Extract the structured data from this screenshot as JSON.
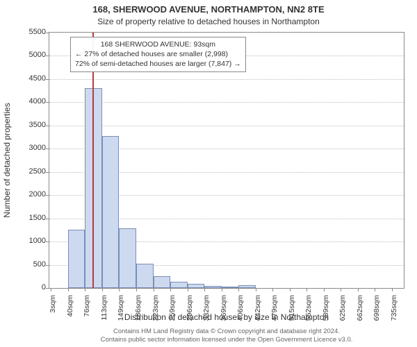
{
  "title_line1": "168, SHERWOOD AVENUE, NORTHAMPTON, NN2 8TE",
  "title_line2": "Size of property relative to detached houses in Northampton",
  "ylabel": "Number of detached properties",
  "xlabel": "Distribution of detached houses by size in Northampton",
  "chart": {
    "type": "histogram",
    "background_color": "#ffffff",
    "border_color": "#8a8a8a",
    "grid_color": "#bcbcbc",
    "bar_fill": "#cdd9ef",
    "bar_border": "#7a8db5",
    "marker_color": "#cc3333",
    "label_fontsize": 12,
    "tick_fontsize": 11,
    "ymin": 0,
    "ymax": 5500,
    "ytick_step": 500,
    "yticks": [
      0,
      500,
      1000,
      1500,
      2000,
      2500,
      3000,
      3500,
      4000,
      4500,
      5000,
      5500
    ],
    "xmin": 0,
    "xmax": 760,
    "xticks": [
      {
        "v": 3,
        "label": "3sqm"
      },
      {
        "v": 40,
        "label": "40sqm"
      },
      {
        "v": 76,
        "label": "76sqm"
      },
      {
        "v": 113,
        "label": "113sqm"
      },
      {
        "v": 149,
        "label": "149sqm"
      },
      {
        "v": 186,
        "label": "186sqm"
      },
      {
        "v": 223,
        "label": "223sqm"
      },
      {
        "v": 259,
        "label": "259sqm"
      },
      {
        "v": 296,
        "label": "296sqm"
      },
      {
        "v": 332,
        "label": "332sqm"
      },
      {
        "v": 369,
        "label": "369sqm"
      },
      {
        "v": 406,
        "label": "406sqm"
      },
      {
        "v": 442,
        "label": "442sqm"
      },
      {
        "v": 479,
        "label": "479sqm"
      },
      {
        "v": 515,
        "label": "515sqm"
      },
      {
        "v": 552,
        "label": "552sqm"
      },
      {
        "v": 589,
        "label": "589sqm"
      },
      {
        "v": 625,
        "label": "625sqm"
      },
      {
        "v": 662,
        "label": "662sqm"
      },
      {
        "v": 698,
        "label": "698sqm"
      },
      {
        "v": 735,
        "label": "735sqm"
      }
    ],
    "bars": [
      {
        "x0": 3,
        "x1": 40,
        "y": 0
      },
      {
        "x0": 40,
        "x1": 76,
        "y": 1260
      },
      {
        "x0": 76,
        "x1": 113,
        "y": 4310
      },
      {
        "x0": 113,
        "x1": 149,
        "y": 3280
      },
      {
        "x0": 149,
        "x1": 186,
        "y": 1280
      },
      {
        "x0": 186,
        "x1": 223,
        "y": 520
      },
      {
        "x0": 223,
        "x1": 259,
        "y": 260
      },
      {
        "x0": 259,
        "x1": 296,
        "y": 130
      },
      {
        "x0": 296,
        "x1": 332,
        "y": 90
      },
      {
        "x0": 332,
        "x1": 369,
        "y": 50
      },
      {
        "x0": 369,
        "x1": 406,
        "y": 30
      },
      {
        "x0": 406,
        "x1": 442,
        "y": 60
      },
      {
        "x0": 442,
        "x1": 479,
        "y": 0
      },
      {
        "x0": 479,
        "x1": 515,
        "y": 0
      },
      {
        "x0": 515,
        "x1": 552,
        "y": 0
      },
      {
        "x0": 552,
        "x1": 589,
        "y": 0
      },
      {
        "x0": 589,
        "x1": 625,
        "y": 0
      },
      {
        "x0": 625,
        "x1": 662,
        "y": 0
      },
      {
        "x0": 662,
        "x1": 698,
        "y": 0
      },
      {
        "x0": 698,
        "x1": 735,
        "y": 0
      }
    ],
    "marker_x": 93
  },
  "annotation": {
    "line1": "168 SHERWOOD AVENUE: 93sqm",
    "line2": "← 27% of detached houses are smaller (2,998)",
    "line3": "72% of semi-detached houses are larger (7,847) →"
  },
  "footer": {
    "line1": "Contains HM Land Registry data © Crown copyright and database right 2024.",
    "line2": "Contains public sector information licensed under the Open Government Licence v3.0."
  }
}
